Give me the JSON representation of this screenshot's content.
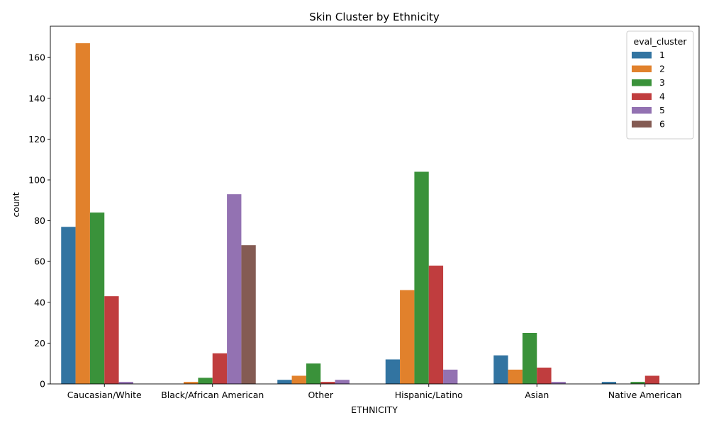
{
  "chart_data": {
    "type": "bar",
    "title": "Skin Cluster by Ethnicity",
    "xlabel": "ETHNICITY",
    "ylabel": "count",
    "categories": [
      "Caucasian/White",
      "Black/African American",
      "Other",
      "Hispanic/Latino",
      "Asian",
      "Native American"
    ],
    "series": [
      {
        "name": "1",
        "color": "#3274a1",
        "values": [
          77,
          0,
          2,
          12,
          14,
          1
        ]
      },
      {
        "name": "2",
        "color": "#e1812c",
        "values": [
          167,
          1,
          4,
          46,
          7,
          0
        ]
      },
      {
        "name": "3",
        "color": "#3a923a",
        "values": [
          84,
          3,
          10,
          104,
          25,
          1
        ]
      },
      {
        "name": "4",
        "color": "#c03d3e",
        "values": [
          43,
          15,
          1,
          58,
          8,
          4
        ]
      },
      {
        "name": "5",
        "color": "#9372b2",
        "values": [
          1,
          93,
          2,
          7,
          1,
          0
        ]
      },
      {
        "name": "6",
        "color": "#845b53",
        "values": [
          0,
          68,
          0,
          0,
          0,
          0
        ]
      }
    ],
    "yticks": [
      0,
      20,
      40,
      60,
      80,
      100,
      120,
      140,
      160
    ],
    "ylim": [
      0,
      175.35
    ],
    "legend": {
      "title": "eval_cluster",
      "placement": "top-right"
    },
    "grid": false
  }
}
